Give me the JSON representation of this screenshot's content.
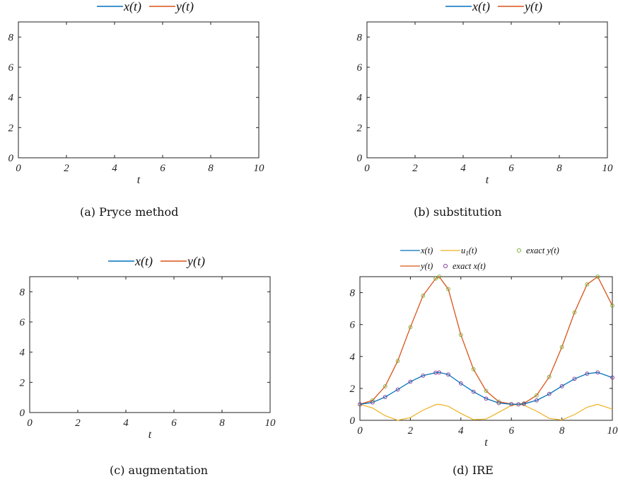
{
  "colors": {
    "x": "#0072BD",
    "y": "#D95319",
    "u1": "#EDB120",
    "exact_y_marker": "#77AC30",
    "exact_x_marker": "#7E2F8E",
    "axis": "#222222"
  },
  "chart_data": [
    {
      "type": "line",
      "caption": "(a)  Pryce method",
      "xlabel": "t",
      "xlim": [
        0,
        10
      ],
      "ylim": [
        0,
        9
      ],
      "xticks": [
        "0",
        "2",
        "4",
        "6",
        "8",
        "10"
      ],
      "yticks": [
        "0",
        "2",
        "4",
        "6",
        "8"
      ],
      "legend_position": "top-center",
      "series": [
        {
          "name": "x(t)",
          "values": []
        },
        {
          "name": "y(t)",
          "values": []
        }
      ]
    },
    {
      "type": "line",
      "caption": "(b)  substitution",
      "xlabel": "t",
      "xlim": [
        0,
        10
      ],
      "ylim": [
        0,
        9
      ],
      "xticks": [
        "0",
        "2",
        "4",
        "6",
        "8",
        "10"
      ],
      "yticks": [
        "0",
        "2",
        "4",
        "6",
        "8"
      ],
      "legend_position": "top-center",
      "series": [
        {
          "name": "x(t)",
          "values": []
        },
        {
          "name": "y(t)",
          "values": []
        }
      ]
    },
    {
      "type": "line",
      "caption": "(c)  augmentation",
      "xlabel": "t",
      "xlim": [
        0,
        10
      ],
      "ylim": [
        0,
        9
      ],
      "xticks": [
        "0",
        "2",
        "4",
        "6",
        "8",
        "10"
      ],
      "yticks": [
        "0",
        "2",
        "4",
        "6",
        "8"
      ],
      "legend_position": "top-center",
      "series": [
        {
          "name": "x(t)",
          "values": []
        },
        {
          "name": "y(t)",
          "values": []
        }
      ]
    },
    {
      "type": "line",
      "caption": "(d)  IRE",
      "xlabel": "t",
      "xlim": [
        0,
        10
      ],
      "ylim": [
        0,
        9
      ],
      "xticks": [
        "0",
        "2",
        "4",
        "6",
        "8",
        "10"
      ],
      "yticks": [
        "0",
        "2",
        "4",
        "6",
        "8"
      ],
      "legend_position": "top-center",
      "x": [
        0,
        0.5,
        1,
        1.5,
        2,
        2.5,
        3,
        3.14,
        3.5,
        4,
        4.5,
        5,
        5.5,
        6,
        6.28,
        6.5,
        7,
        7.5,
        8,
        8.5,
        9,
        9.42,
        10
      ],
      "series": [
        {
          "name": "x(t)",
          "values": [
            1.0,
            1.12,
            1.46,
            1.93,
            2.42,
            2.8,
            2.98,
            3.0,
            2.87,
            2.31,
            1.79,
            1.36,
            1.08,
            1.01,
            1.0,
            1.03,
            1.25,
            1.65,
            2.14,
            2.6,
            2.92,
            3.0,
            2.68
          ]
        },
        {
          "name": "u",
          "values": [
            1.0,
            0.77,
            0.29,
            0.005,
            0.17,
            0.64,
            0.98,
            1.0,
            0.88,
            0.43,
            0.04,
            0.08,
            0.5,
            0.93,
            1.0,
            0.95,
            0.57,
            0.12,
            0.02,
            0.36,
            0.82,
            1.0,
            0.7
          ]
        },
        {
          "name": "y(t)",
          "values": [
            1.0,
            1.25,
            2.13,
            3.72,
            5.84,
            7.81,
            8.88,
            9.0,
            8.22,
            5.35,
            3.2,
            1.84,
            1.17,
            1.02,
            1.0,
            1.06,
            1.56,
            2.72,
            4.59,
            6.76,
            8.52,
            9.0,
            7.18
          ]
        },
        {
          "name": "exact x(t)",
          "values": [
            1.0,
            1.12,
            1.46,
            1.93,
            2.42,
            2.8,
            2.98,
            3.0,
            2.87,
            2.31,
            1.79,
            1.36,
            1.08,
            1.01,
            1.0,
            1.03,
            1.25,
            1.65,
            2.14,
            2.6,
            2.92,
            3.0,
            2.68
          ]
        },
        {
          "name": "exact y(t)",
          "values": [
            1.0,
            1.25,
            2.13,
            3.72,
            5.84,
            7.81,
            8.88,
            9.0,
            8.22,
            5.35,
            3.2,
            1.84,
            1.17,
            1.02,
            1.0,
            1.06,
            1.56,
            2.72,
            4.59,
            6.76,
            8.52,
            9.0,
            7.18
          ]
        }
      ],
      "legend_labels": {
        "x": "x(t)",
        "u_base": "u",
        "u_sub": "1",
        "u_suffix": "(t)",
        "exact_y": "exact y(t)",
        "y": "y(t)",
        "exact_x": "exact x(t)"
      }
    }
  ]
}
